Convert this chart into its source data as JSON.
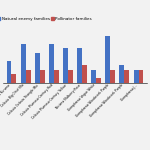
{
  "categories": [
    "Celosia Kurume",
    "Celosia Big Chief Mix",
    "Celosia Celosia Triangle Mix",
    "Celosia Plumosa Century Red",
    "Celosia Plumosa Century Yellow",
    "Niciana Mulberry Rose",
    "Gomphrena Vegus White",
    "Gomphrena Woodcreek Purple",
    "Gomphrena Woodcreek Purple",
    "Gomphrena J..."
  ],
  "natural_enemy": [
    5,
    9,
    7,
    9,
    8,
    8,
    3,
    11,
    4,
    3
  ],
  "pollinator": [
    2,
    3,
    3,
    3,
    3,
    4,
    1,
    3,
    3,
    3
  ],
  "natural_enemy_color": "#4472C4",
  "pollinator_color": "#C0504D",
  "legend_labels": [
    "Natural enemy families",
    "Pollinator families"
  ],
  "bar_width": 0.35,
  "figsize": [
    1.5,
    1.5
  ],
  "dpi": 100,
  "ylim": [
    0,
    13
  ],
  "tick_fontsize": 2.2,
  "legend_fontsize": 3.0,
  "background_color": "#f2f2f2"
}
